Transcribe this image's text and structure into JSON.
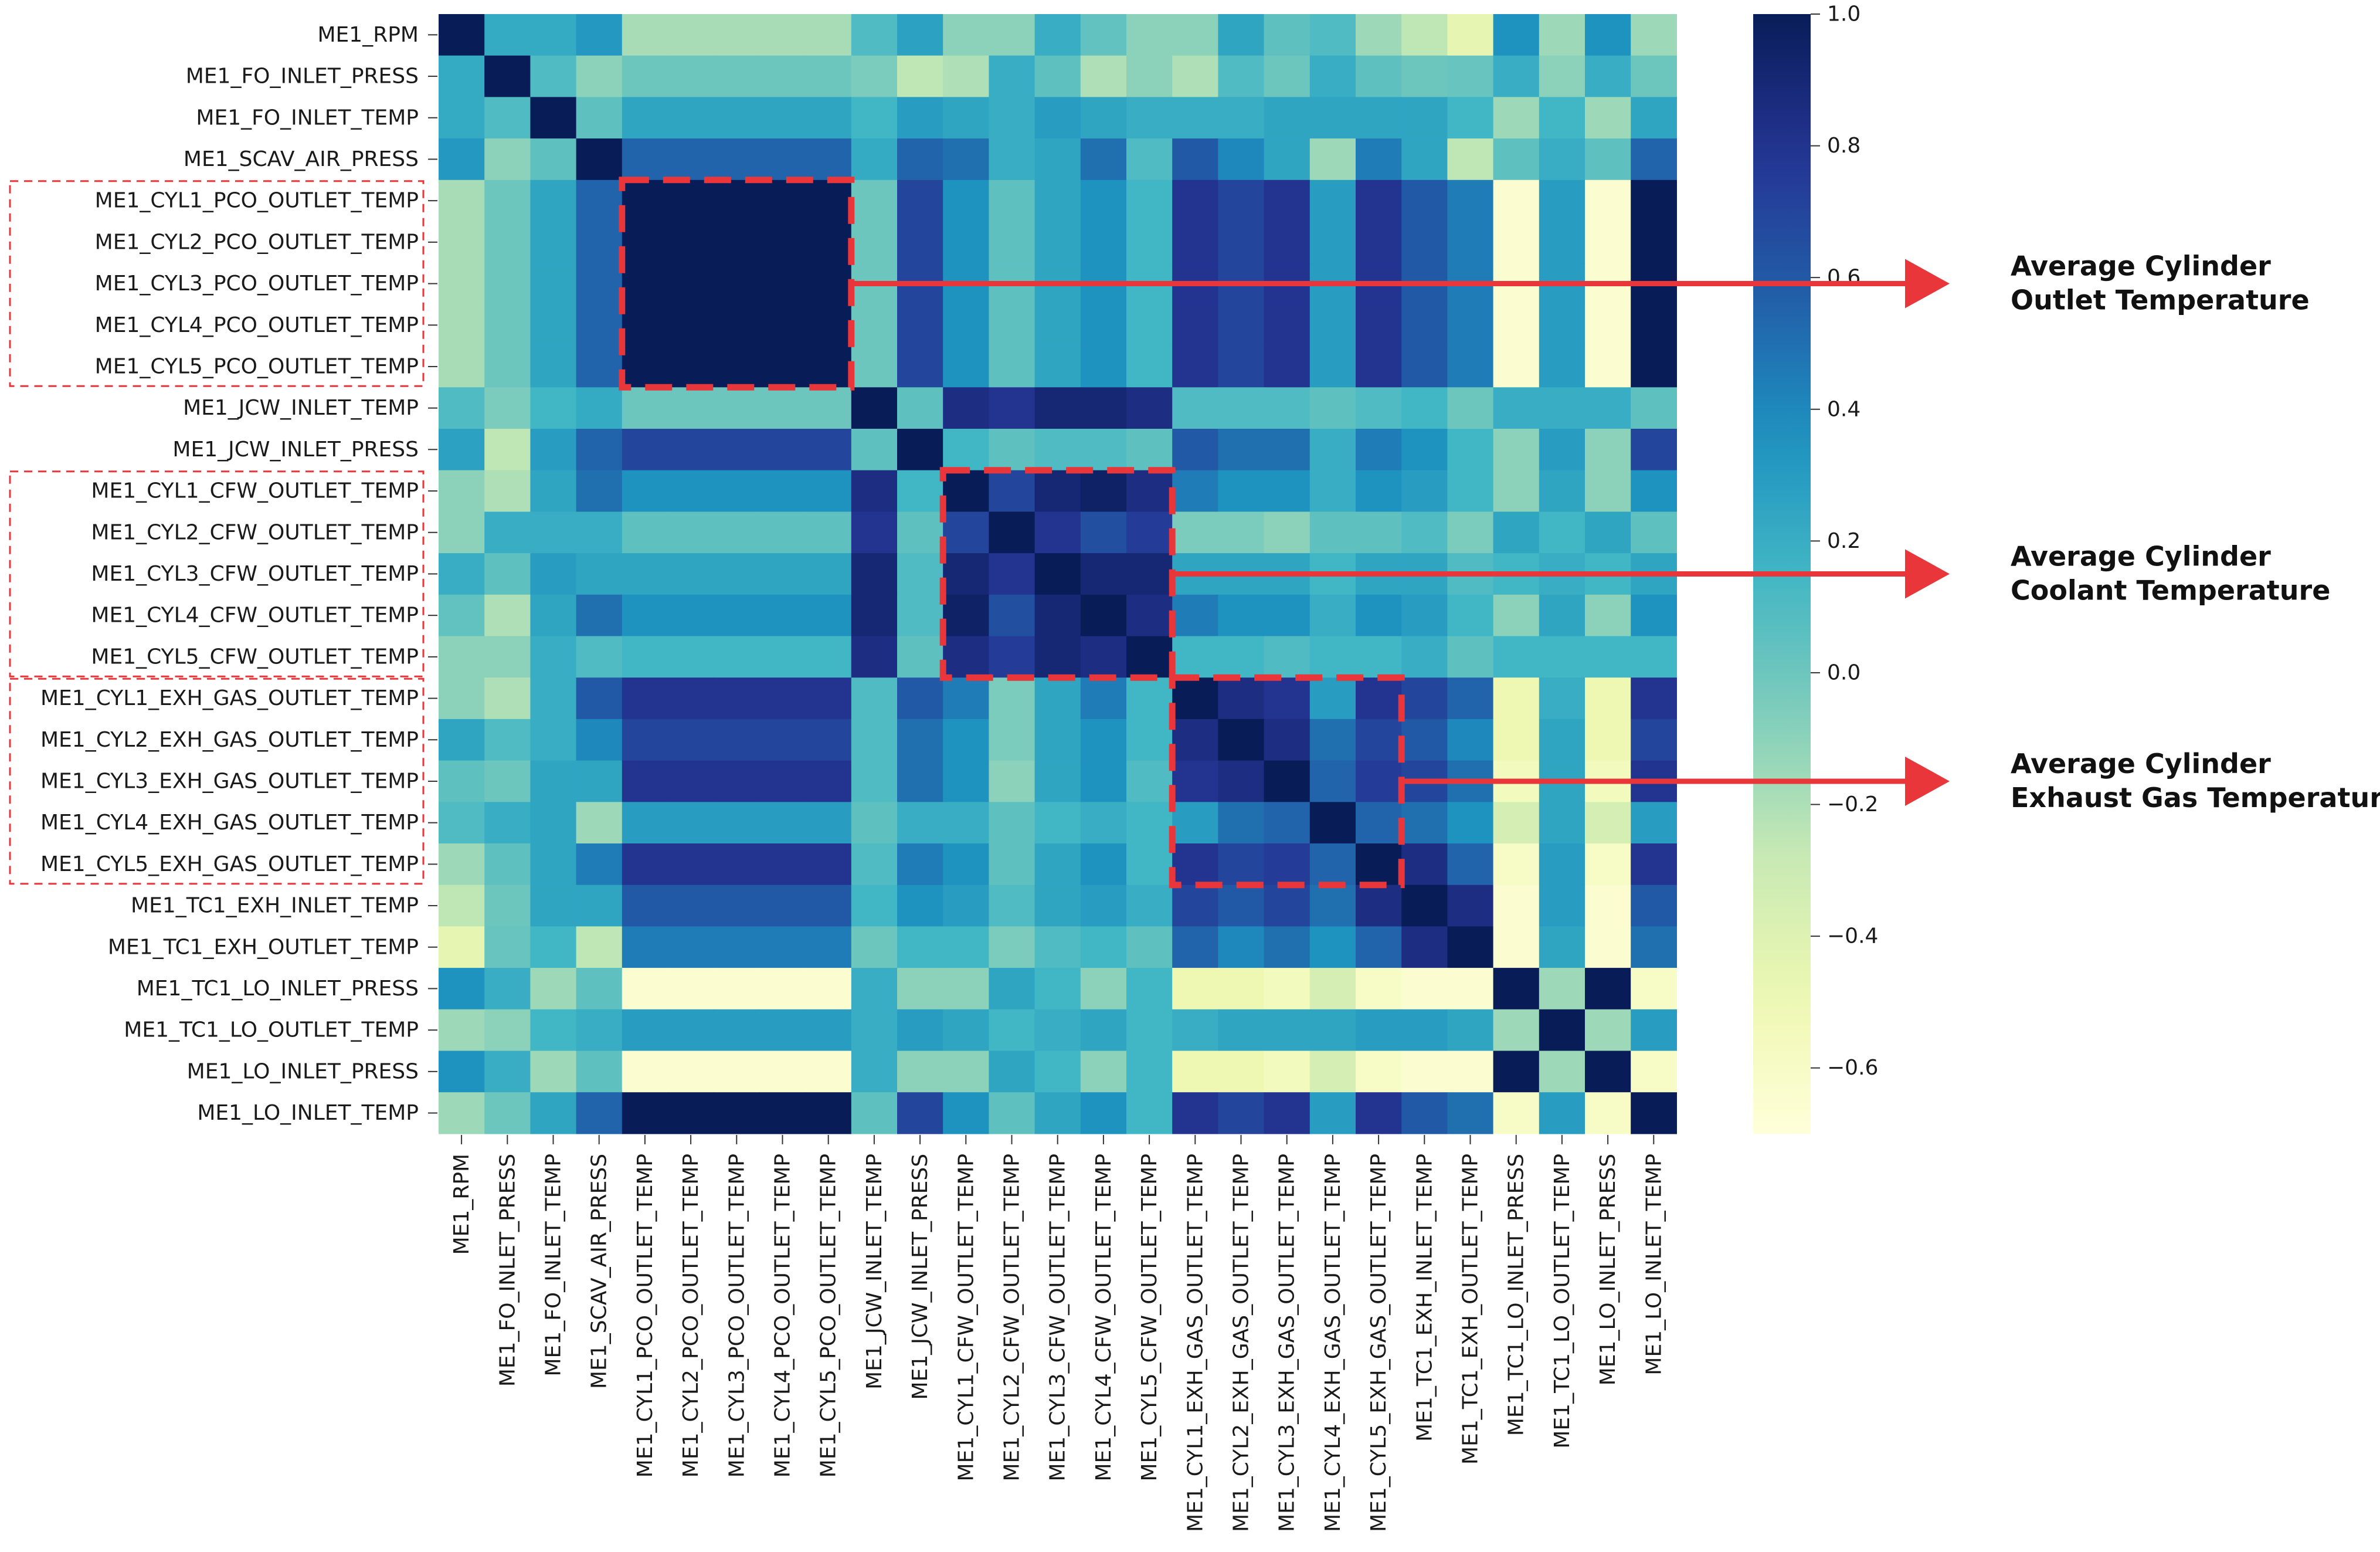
{
  "chart_data": {
    "type": "heatmap",
    "title": "",
    "variables": [
      "ME1_RPM",
      "ME1_FO_INLET_PRESS",
      "ME1_FO_INLET_TEMP",
      "ME1_SCAV_AIR_PRESS",
      "ME1_CYL1_PCO_OUTLET_TEMP",
      "ME1_CYL2_PCO_OUTLET_TEMP",
      "ME1_CYL3_PCO_OUTLET_TEMP",
      "ME1_CYL4_PCO_OUTLET_TEMP",
      "ME1_CYL5_PCO_OUTLET_TEMP",
      "ME1_JCW_INLET_TEMP",
      "ME1_JCW_INLET_PRESS",
      "ME1_CYL1_CFW_OUTLET_TEMP",
      "ME1_CYL2_CFW_OUTLET_TEMP",
      "ME1_CYL3_CFW_OUTLET_TEMP",
      "ME1_CYL4_CFW_OUTLET_TEMP",
      "ME1_CYL5_CFW_OUTLET_TEMP",
      "ME1_CYL1_EXH_GAS_OUTLET_TEMP",
      "ME1_CYL2_EXH_GAS_OUTLET_TEMP",
      "ME1_CYL3_EXH_GAS_OUTLET_TEMP",
      "ME1_CYL4_EXH_GAS_OUTLET_TEMP",
      "ME1_CYL5_EXH_GAS_OUTLET_TEMP",
      "ME1_TC1_EXH_INLET_TEMP",
      "ME1_TC1_EXH_OUTLET_TEMP",
      "ME1_TC1_LO_INLET_PRESS",
      "ME1_TC1_LO_OUTLET_TEMP",
      "ME1_LO_INLET_PRESS",
      "ME1_LO_INLET_TEMP"
    ],
    "values": [
      [
        1.0,
        0.22,
        0.22,
        0.32,
        -0.18,
        -0.18,
        -0.18,
        -0.18,
        -0.18,
        0.1,
        0.27,
        -0.1,
        -0.1,
        0.2,
        0.04,
        -0.1,
        -0.1,
        0.25,
        0.05,
        0.1,
        -0.15,
        -0.25,
        -0.45,
        0.35,
        -0.15,
        0.35,
        -0.15
      ],
      [
        0.22,
        1.0,
        0.1,
        -0.1,
        0.0,
        0.0,
        0.0,
        0.0,
        0.0,
        -0.05,
        -0.25,
        -0.2,
        0.2,
        0.05,
        -0.2,
        -0.1,
        -0.2,
        0.1,
        0.0,
        0.2,
        0.05,
        0.0,
        0.02,
        0.2,
        -0.1,
        0.2,
        0.0
      ],
      [
        0.22,
        0.1,
        1.0,
        0.05,
        0.25,
        0.25,
        0.25,
        0.25,
        0.25,
        0.15,
        0.3,
        0.25,
        0.2,
        0.3,
        0.25,
        0.2,
        0.2,
        0.2,
        0.25,
        0.25,
        0.25,
        0.25,
        0.15,
        -0.15,
        0.15,
        -0.15,
        0.25
      ],
      [
        0.32,
        -0.1,
        0.05,
        1.0,
        0.55,
        0.55,
        0.55,
        0.55,
        0.55,
        0.22,
        0.55,
        0.5,
        0.2,
        0.25,
        0.5,
        0.1,
        0.6,
        0.4,
        0.25,
        -0.15,
        0.45,
        0.25,
        -0.25,
        0.05,
        0.2,
        0.05,
        0.55
      ],
      [
        -0.18,
        0.0,
        0.25,
        0.55,
        1.0,
        1.0,
        1.0,
        1.0,
        1.0,
        0.0,
        0.7,
        0.35,
        0.05,
        0.25,
        0.35,
        0.15,
        0.8,
        0.7,
        0.8,
        0.3,
        0.8,
        0.6,
        0.45,
        -0.65,
        0.3,
        -0.65,
        1.0
      ],
      [
        -0.18,
        0.0,
        0.25,
        0.55,
        1.0,
        1.0,
        1.0,
        1.0,
        1.0,
        0.0,
        0.7,
        0.35,
        0.05,
        0.25,
        0.35,
        0.15,
        0.8,
        0.7,
        0.8,
        0.3,
        0.8,
        0.6,
        0.45,
        -0.65,
        0.3,
        -0.65,
        1.0
      ],
      [
        -0.18,
        0.0,
        0.25,
        0.55,
        1.0,
        1.0,
        1.0,
        1.0,
        1.0,
        0.0,
        0.7,
        0.35,
        0.05,
        0.25,
        0.35,
        0.15,
        0.8,
        0.7,
        0.8,
        0.3,
        0.8,
        0.6,
        0.45,
        -0.65,
        0.3,
        -0.65,
        1.0
      ],
      [
        -0.18,
        0.0,
        0.25,
        0.55,
        1.0,
        1.0,
        1.0,
        1.0,
        1.0,
        0.0,
        0.7,
        0.35,
        0.05,
        0.25,
        0.35,
        0.15,
        0.8,
        0.7,
        0.8,
        0.3,
        0.8,
        0.6,
        0.45,
        -0.65,
        0.3,
        -0.65,
        1.0
      ],
      [
        -0.18,
        0.0,
        0.25,
        0.55,
        1.0,
        1.0,
        1.0,
        1.0,
        1.0,
        0.0,
        0.7,
        0.35,
        0.05,
        0.25,
        0.35,
        0.15,
        0.8,
        0.7,
        0.8,
        0.3,
        0.8,
        0.6,
        0.45,
        -0.65,
        0.3,
        -0.65,
        1.0
      ],
      [
        0.1,
        -0.05,
        0.15,
        0.22,
        0.0,
        0.0,
        0.0,
        0.0,
        0.0,
        1.0,
        0.05,
        0.85,
        0.8,
        0.9,
        0.9,
        0.85,
        0.1,
        0.1,
        0.1,
        0.05,
        0.1,
        0.15,
        0.0,
        0.2,
        0.2,
        0.2,
        0.05
      ],
      [
        0.27,
        -0.25,
        0.3,
        0.55,
        0.7,
        0.7,
        0.7,
        0.7,
        0.7,
        0.05,
        1.0,
        0.15,
        0.05,
        0.1,
        0.1,
        0.05,
        0.6,
        0.5,
        0.5,
        0.2,
        0.45,
        0.35,
        0.15,
        -0.1,
        0.3,
        -0.1,
        0.7
      ],
      [
        -0.1,
        -0.2,
        0.25,
        0.5,
        0.35,
        0.35,
        0.35,
        0.35,
        0.35,
        0.85,
        0.15,
        1.0,
        0.7,
        0.9,
        0.95,
        0.85,
        0.45,
        0.35,
        0.35,
        0.2,
        0.35,
        0.3,
        0.15,
        -0.1,
        0.25,
        -0.1,
        0.35
      ],
      [
        -0.1,
        0.2,
        0.2,
        0.2,
        0.05,
        0.05,
        0.05,
        0.05,
        0.05,
        0.8,
        0.05,
        0.7,
        1.0,
        0.8,
        0.65,
        0.75,
        -0.05,
        -0.05,
        -0.1,
        0.05,
        0.05,
        0.1,
        -0.05,
        0.25,
        0.15,
        0.25,
        0.05
      ],
      [
        0.2,
        0.05,
        0.3,
        0.25,
        0.25,
        0.25,
        0.25,
        0.25,
        0.25,
        0.9,
        0.1,
        0.9,
        0.8,
        1.0,
        0.9,
        0.9,
        0.25,
        0.25,
        0.25,
        0.15,
        0.25,
        0.25,
        0.1,
        0.15,
        0.2,
        0.15,
        0.25
      ],
      [
        0.04,
        -0.2,
        0.25,
        0.5,
        0.35,
        0.35,
        0.35,
        0.35,
        0.35,
        0.9,
        0.1,
        0.95,
        0.65,
        0.9,
        1.0,
        0.85,
        0.45,
        0.35,
        0.35,
        0.2,
        0.35,
        0.3,
        0.15,
        -0.1,
        0.25,
        -0.1,
        0.35
      ],
      [
        -0.1,
        -0.1,
        0.2,
        0.1,
        0.15,
        0.15,
        0.15,
        0.15,
        0.15,
        0.85,
        0.05,
        0.85,
        0.75,
        0.9,
        0.85,
        1.0,
        0.15,
        0.15,
        0.1,
        0.15,
        0.15,
        0.2,
        0.05,
        0.15,
        0.15,
        0.15,
        0.15
      ],
      [
        -0.1,
        -0.2,
        0.2,
        0.6,
        0.8,
        0.8,
        0.8,
        0.8,
        0.8,
        0.1,
        0.6,
        0.45,
        -0.05,
        0.25,
        0.45,
        0.15,
        1.0,
        0.85,
        0.8,
        0.3,
        0.8,
        0.7,
        0.55,
        -0.5,
        0.2,
        -0.5,
        0.8
      ],
      [
        0.25,
        0.1,
        0.2,
        0.4,
        0.7,
        0.7,
        0.7,
        0.7,
        0.7,
        0.1,
        0.5,
        0.35,
        -0.05,
        0.25,
        0.35,
        0.15,
        0.85,
        1.0,
        0.85,
        0.5,
        0.7,
        0.6,
        0.4,
        -0.5,
        0.25,
        -0.5,
        0.7
      ],
      [
        0.05,
        0.0,
        0.25,
        0.25,
        0.8,
        0.8,
        0.8,
        0.8,
        0.8,
        0.1,
        0.5,
        0.35,
        -0.1,
        0.25,
        0.35,
        0.1,
        0.8,
        0.85,
        1.0,
        0.55,
        0.75,
        0.7,
        0.5,
        -0.55,
        0.25,
        -0.55,
        0.8
      ],
      [
        0.1,
        0.2,
        0.25,
        -0.15,
        0.3,
        0.3,
        0.3,
        0.3,
        0.3,
        0.05,
        0.2,
        0.2,
        0.05,
        0.15,
        0.2,
        0.15,
        0.3,
        0.5,
        0.55,
        1.0,
        0.55,
        0.5,
        0.35,
        -0.35,
        0.25,
        -0.35,
        0.3
      ],
      [
        -0.15,
        0.05,
        0.25,
        0.45,
        0.8,
        0.8,
        0.8,
        0.8,
        0.8,
        0.1,
        0.45,
        0.35,
        0.05,
        0.25,
        0.35,
        0.15,
        0.8,
        0.7,
        0.75,
        0.55,
        1.0,
        0.85,
        0.55,
        -0.6,
        0.3,
        -0.6,
        0.8
      ],
      [
        -0.25,
        0.0,
        0.25,
        0.25,
        0.6,
        0.6,
        0.6,
        0.6,
        0.6,
        0.15,
        0.35,
        0.3,
        0.1,
        0.25,
        0.3,
        0.2,
        0.7,
        0.6,
        0.7,
        0.5,
        0.85,
        1.0,
        0.85,
        -0.65,
        0.3,
        -0.65,
        0.6
      ],
      [
        -0.45,
        0.02,
        0.15,
        -0.25,
        0.45,
        0.45,
        0.45,
        0.45,
        0.45,
        0.0,
        0.15,
        0.15,
        -0.05,
        0.1,
        0.15,
        0.05,
        0.55,
        0.4,
        0.5,
        0.35,
        0.55,
        0.85,
        1.0,
        -0.65,
        0.25,
        -0.65,
        0.5
      ],
      [
        0.35,
        0.2,
        -0.15,
        0.05,
        -0.65,
        -0.65,
        -0.65,
        -0.65,
        -0.65,
        0.2,
        -0.1,
        -0.1,
        0.25,
        0.15,
        -0.1,
        0.15,
        -0.5,
        -0.5,
        -0.55,
        -0.35,
        -0.6,
        -0.65,
        -0.65,
        1.0,
        -0.15,
        1.0,
        -0.6
      ],
      [
        -0.15,
        -0.1,
        0.15,
        0.2,
        0.3,
        0.3,
        0.3,
        0.3,
        0.3,
        0.2,
        0.3,
        0.25,
        0.15,
        0.2,
        0.25,
        0.15,
        0.2,
        0.25,
        0.25,
        0.25,
        0.3,
        0.3,
        0.25,
        -0.15,
        1.0,
        -0.15,
        0.3
      ],
      [
        0.35,
        0.2,
        -0.15,
        0.05,
        -0.65,
        -0.65,
        -0.65,
        -0.65,
        -0.65,
        0.2,
        -0.1,
        -0.1,
        0.25,
        0.15,
        -0.1,
        0.15,
        -0.5,
        -0.5,
        -0.55,
        -0.35,
        -0.6,
        -0.65,
        -0.65,
        1.0,
        -0.15,
        1.0,
        -0.6
      ],
      [
        -0.15,
        0.0,
        0.25,
        0.55,
        1.0,
        1.0,
        1.0,
        1.0,
        1.0,
        0.05,
        0.7,
        0.35,
        0.05,
        0.25,
        0.35,
        0.15,
        0.8,
        0.7,
        0.8,
        0.3,
        0.8,
        0.6,
        0.5,
        -0.6,
        0.3,
        -0.6,
        1.0
      ]
    ],
    "vmin": -0.7,
    "vmax": 1.0,
    "colormap": "YlGnBu",
    "colorbar_ticks": [
      1.0,
      0.8,
      0.6,
      0.4,
      0.2,
      0.0,
      -0.2,
      -0.4,
      -0.6
    ],
    "colorbar_tick_labels": [
      "1.0",
      "0.8",
      "0.6",
      "0.4",
      "0.2",
      "0.0",
      "−0.2",
      "−0.4",
      "−0.6"
    ],
    "highlight_boxes": [
      {
        "name": "Average Cylinder Outlet Temperature",
        "rows": [
          4,
          8
        ],
        "cols": [
          4,
          8
        ]
      },
      {
        "name": "Average Cylinder Coolant Temperature",
        "rows": [
          11,
          15
        ],
        "cols": [
          11,
          15
        ]
      },
      {
        "name": "Average Cylinder Exhaust Gas Temperature",
        "rows": [
          16,
          20
        ],
        "cols": [
          16,
          20
        ]
      }
    ],
    "label_groups": [
      {
        "rows": [
          4,
          8
        ]
      },
      {
        "rows": [
          11,
          15
        ]
      },
      {
        "rows": [
          16,
          20
        ]
      }
    ],
    "annotations": [
      {
        "line1": "Average Cylinder",
        "line2": "Outlet Temperature"
      },
      {
        "line1": "Average Cylinder",
        "line2": "Coolant Temperature"
      },
      {
        "line1": "Average Cylinder",
        "line2": "Exhaust Gas Temperature"
      }
    ]
  },
  "colors": {
    "highlight_red": "#e8363a",
    "annotation_text": "#111111",
    "label_text": "#1a1a1a"
  }
}
